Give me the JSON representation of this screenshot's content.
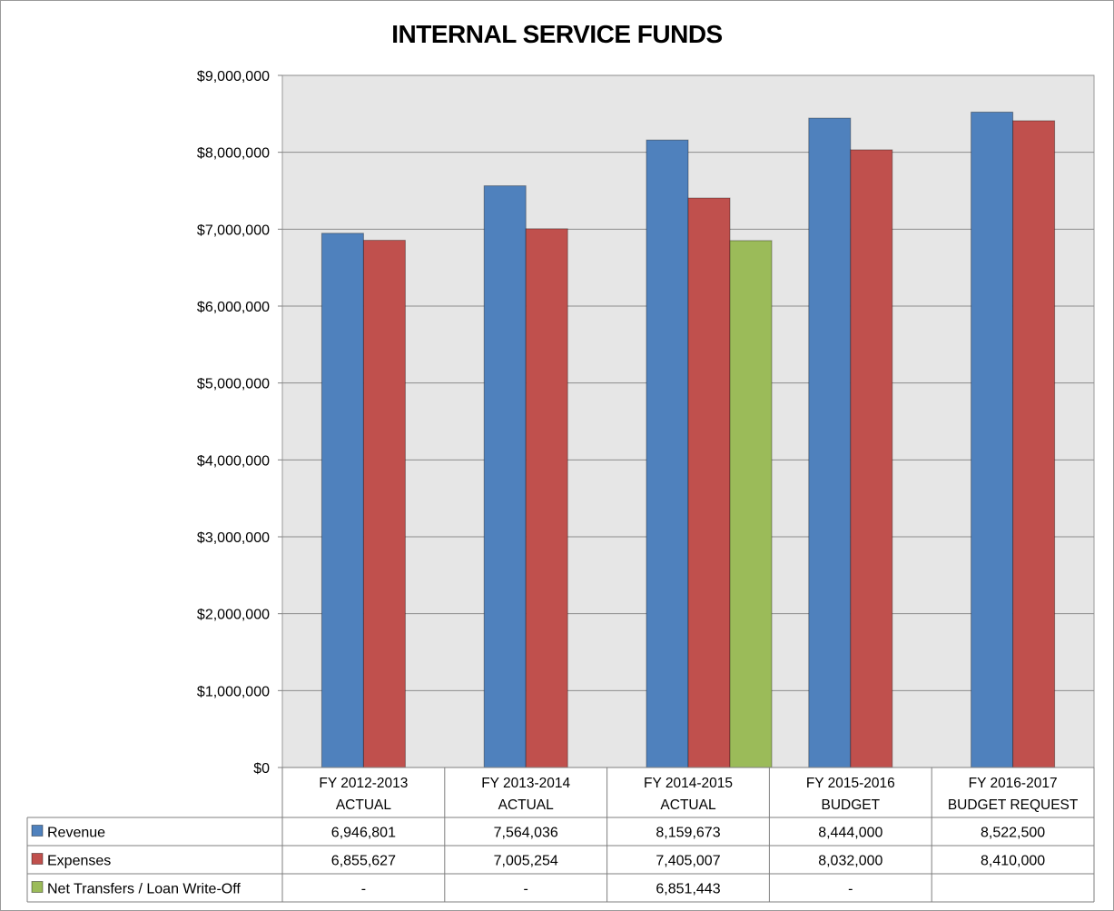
{
  "chart_data": {
    "type": "bar",
    "title": "INTERNAL SERVICE FUNDS",
    "categories": [
      [
        "FY 2012-2013",
        "ACTUAL"
      ],
      [
        "FY 2013-2014",
        "ACTUAL"
      ],
      [
        "FY 2014-2015",
        "ACTUAL"
      ],
      [
        "FY 2015-2016",
        "BUDGET"
      ],
      [
        "FY 2016-2017",
        "BUDGET REQUEST"
      ]
    ],
    "ylim": [
      0,
      9000000
    ],
    "yticks": [
      0,
      1000000,
      2000000,
      3000000,
      4000000,
      5000000,
      6000000,
      7000000,
      8000000,
      9000000
    ],
    "ytick_labels": [
      "$0",
      "$1,000,000",
      "$2,000,000",
      "$3,000,000",
      "$4,000,000",
      "$5,000,000",
      "$6,000,000",
      "$7,000,000",
      "$8,000,000",
      "$9,000,000"
    ],
    "grid": true,
    "legend": "data table below chart",
    "series": [
      {
        "name": "Revenue",
        "color": "#4f81bd",
        "values": [
          6946801,
          7564036,
          8159673,
          8444000,
          8522500
        ],
        "labels": [
          "6,946,801",
          "7,564,036",
          "8,159,673",
          "8,444,000",
          "8,522,500"
        ]
      },
      {
        "name": "Expenses",
        "color": "#c0504d",
        "values": [
          6855627,
          7005254,
          7405007,
          8032000,
          8410000
        ],
        "labels": [
          "6,855,627",
          "7,005,254",
          "7,405,007",
          "8,032,000",
          "8,410,000"
        ]
      },
      {
        "name": "Net Transfers / Loan Write-Off",
        "color": "#9bbb59",
        "values": [
          null,
          null,
          6851443,
          null,
          null
        ],
        "labels": [
          "-",
          "-",
          "6,851,443",
          "-",
          ""
        ]
      }
    ]
  },
  "colors": {
    "plot_background": "#e6e6e6",
    "gridline": "#8c8c8c",
    "border": "#9a9a9a"
  }
}
